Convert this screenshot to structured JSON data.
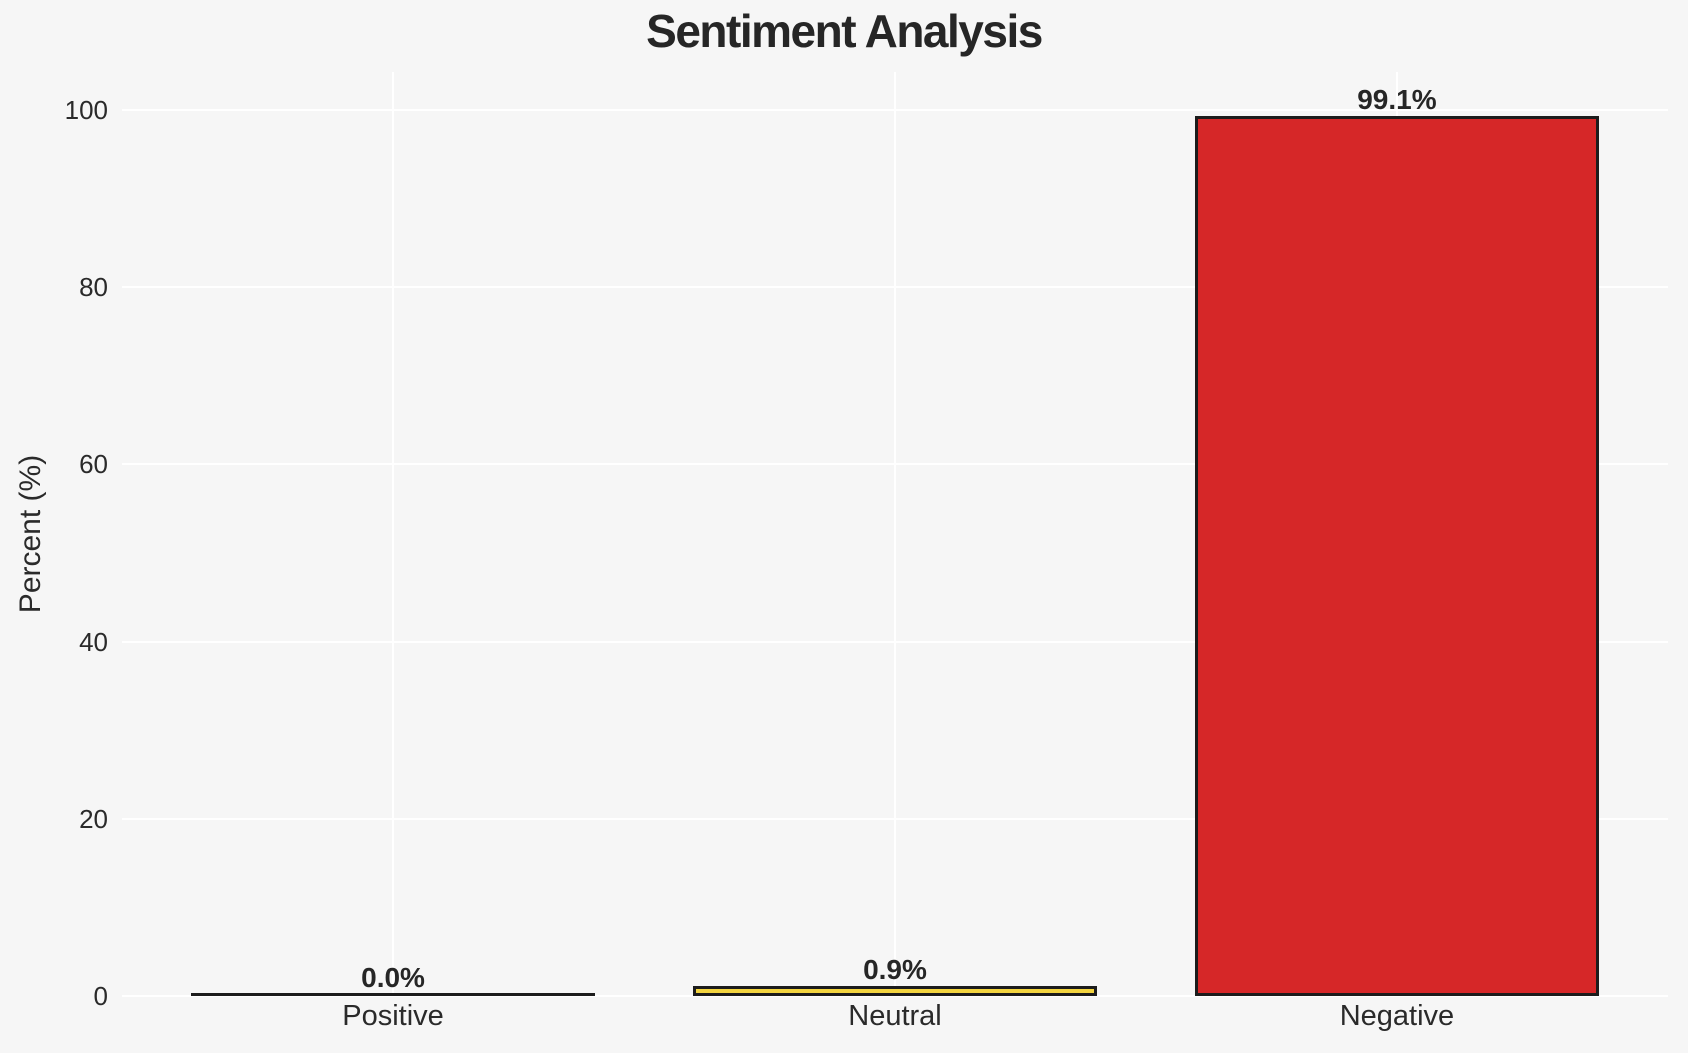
{
  "chart_data": {
    "type": "bar",
    "title": "Sentiment Analysis",
    "ylabel": "Percent (%)",
    "xlabel": "",
    "categories": [
      "Positive",
      "Neutral",
      "Negative"
    ],
    "values": [
      0.0,
      0.9,
      99.1
    ],
    "value_labels": [
      "0.0%",
      "0.9%",
      "99.1%"
    ],
    "bar_colors": [
      null,
      "#f3d43f",
      "#d62728"
    ],
    "bar_edge_color": "#1c1c1c",
    "yticks": [
      0,
      20,
      40,
      60,
      80,
      100
    ],
    "ytick_labels": [
      "0",
      "20",
      "40",
      "60",
      "80",
      "100"
    ],
    "ylim": [
      0,
      104.3
    ],
    "grid": true,
    "grid_color": "#ffffff",
    "background_color": "#f6f6f6",
    "legend": null
  }
}
